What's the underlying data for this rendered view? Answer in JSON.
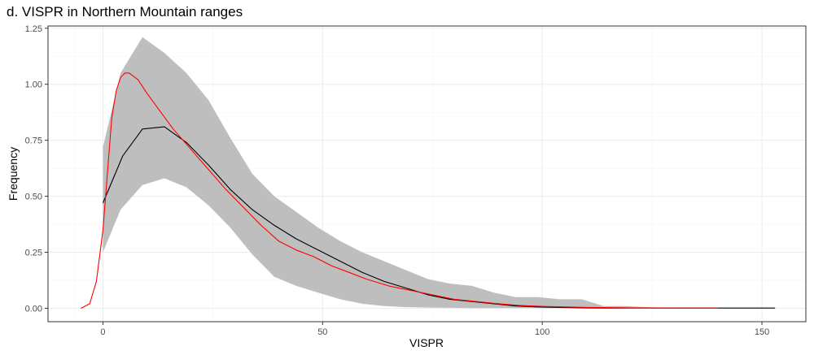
{
  "chart_data": {
    "type": "line",
    "title": "d. VISPR in Northern Mountain ranges",
    "xlabel": "VISPR",
    "ylabel": "Frequency",
    "xlim": [
      -12.5,
      160
    ],
    "ylim": [
      -0.06,
      1.26
    ],
    "xticks": [
      0,
      50,
      100,
      150
    ],
    "yticks": [
      0.0,
      0.25,
      0.5,
      0.75,
      1.0,
      1.25
    ],
    "ytick_labels": [
      "0.00",
      "0.25",
      "0.50",
      "0.75",
      "1.00",
      "1.25"
    ],
    "grid": true,
    "colors": {
      "band": "#bebebe",
      "mean_line": "#000000",
      "density_line": "#ff0000",
      "grid_major": "#ebebeb",
      "grid_minor": "#f5f5f5",
      "panel_border": "#333333"
    },
    "band": {
      "x": [
        0,
        4,
        9,
        14,
        19,
        24,
        29,
        34,
        39,
        44,
        49,
        54,
        59,
        64,
        69,
        74,
        79,
        84,
        89,
        94,
        99,
        104,
        109,
        114,
        119,
        124,
        129,
        134,
        139
      ],
      "lower": [
        0.25,
        0.44,
        0.55,
        0.58,
        0.54,
        0.46,
        0.36,
        0.24,
        0.14,
        0.1,
        0.07,
        0.04,
        0.02,
        0.01,
        0.005,
        0.003,
        0.002,
        0.001,
        0.001,
        0.001,
        0.001,
        0.001,
        0.001,
        0.001,
        0.001,
        0.001,
        0.001,
        0.001,
        0.001
      ],
      "upper": [
        0.72,
        1.05,
        1.21,
        1.14,
        1.05,
        0.93,
        0.76,
        0.6,
        0.5,
        0.43,
        0.36,
        0.3,
        0.25,
        0.21,
        0.17,
        0.13,
        0.11,
        0.1,
        0.07,
        0.05,
        0.05,
        0.04,
        0.04,
        0.01,
        0.01,
        0.005,
        0.003,
        0.002,
        0.001
      ]
    },
    "series": [
      {
        "x": [
          0,
          4.5,
          9,
          14,
          19,
          24,
          29,
          34,
          39,
          44,
          49,
          54,
          59,
          64,
          69,
          74,
          79,
          84,
          89,
          94,
          99,
          104,
          109,
          114,
          119,
          124,
          129,
          134,
          139,
          144,
          149,
          153
        ],
        "y": [
          0.47,
          0.68,
          0.8,
          0.81,
          0.74,
          0.64,
          0.53,
          0.44,
          0.37,
          0.31,
          0.26,
          0.21,
          0.16,
          0.12,
          0.09,
          0.06,
          0.04,
          0.03,
          0.02,
          0.01,
          0.006,
          0.004,
          0.002,
          0.001,
          0.001,
          0.001,
          0.001,
          0.001,
          0.001,
          0.001,
          0.001,
          0.001
        ]
      },
      {
        "x": [
          -5,
          -3,
          -1.5,
          0,
          1,
          2,
          3,
          4,
          5,
          6,
          8,
          10,
          13,
          16,
          20,
          24,
          28,
          32,
          36,
          40,
          44,
          48,
          52,
          56,
          60,
          65,
          70,
          75,
          80,
          85,
          90,
          95,
          100,
          110,
          120,
          130,
          140
        ],
        "y": [
          0.0,
          0.02,
          0.12,
          0.35,
          0.6,
          0.85,
          0.97,
          1.03,
          1.05,
          1.05,
          1.02,
          0.96,
          0.88,
          0.8,
          0.71,
          0.62,
          0.53,
          0.45,
          0.37,
          0.3,
          0.26,
          0.23,
          0.19,
          0.16,
          0.13,
          0.1,
          0.08,
          0.06,
          0.04,
          0.03,
          0.02,
          0.012,
          0.008,
          0.004,
          0.002,
          0.001,
          0.001
        ]
      }
    ]
  }
}
